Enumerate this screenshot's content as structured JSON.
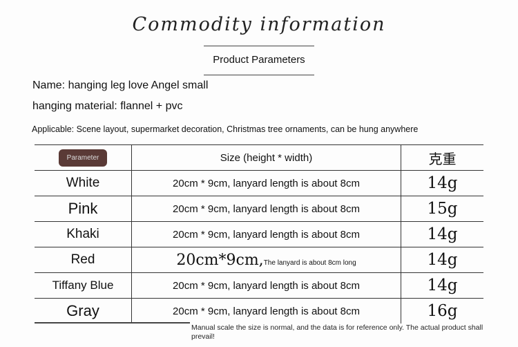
{
  "title": "Commodity information",
  "section": "Product Parameters",
  "name": "Name: hanging leg love Angel small",
  "material": "hanging material: flannel + pvc",
  "applicable": "Applicable: Scene layout, supermarket decoration, Christmas tree ornaments, can be hung anywhere",
  "table": {
    "headers": [
      "Parameter",
      "Size (height * width)",
      "克重"
    ],
    "rows": [
      {
        "color": "White",
        "size": "20cm * 9cm, lanyard length is about 8cm",
        "weight": "14g"
      },
      {
        "color": "Pink",
        "size": "20cm * 9cm, lanyard length is about 8cm",
        "weight": "15g"
      },
      {
        "color": "Khaki",
        "size": "20cm * 9cm, lanyard length is about 8cm",
        "weight": "14g"
      },
      {
        "color": "Red",
        "size_main": "20cm*9cm,",
        "size_small": "The lanyard is about 8cm long",
        "weight": "14g"
      },
      {
        "color": "Tiffany Blue",
        "size": "20cm * 9cm, lanyard length is about 8cm",
        "weight": "14g"
      },
      {
        "color": "Gray",
        "size": "20cm * 9cm, lanyard length is about 8cm",
        "weight": "16g"
      }
    ]
  },
  "note": "Manual scale the size is normal, and the data is for reference only. The actual product shall prevail!"
}
